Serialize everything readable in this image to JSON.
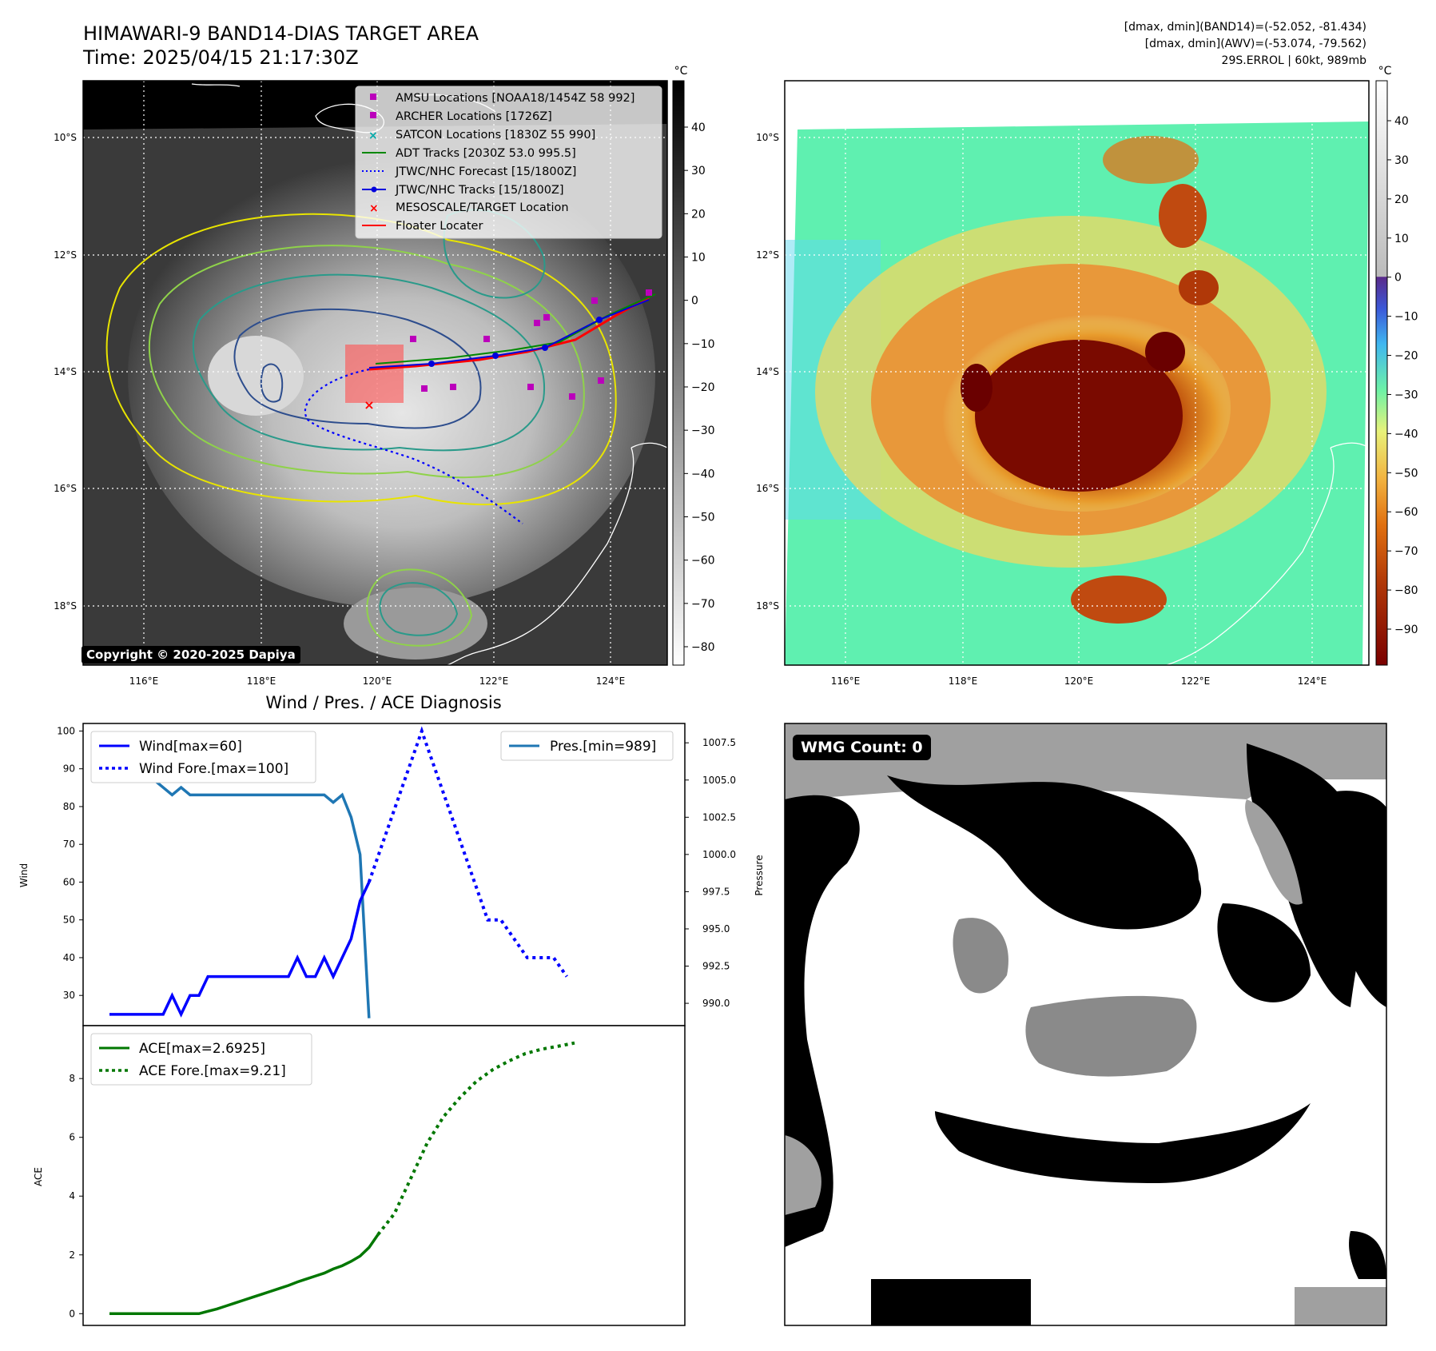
{
  "header": {
    "title_line1": "HIMAWARI-9 BAND14-DIAS TARGET AREA",
    "title_line2": "Time: 2025/04/15 21:17:30Z",
    "right_line1": "[dmax, dmin](BAND14)=(-52.052, -81.434)",
    "right_line2": "[dmax, dmin](AWV)=(-53.074, -79.562)",
    "right_line3": "29S.ERROL | 60kt, 989mb"
  },
  "copyright": "Copyright © 2020-2025 Dapiya",
  "wmg_count": "WMG Count: 0",
  "colors": {
    "wind": "#0000ff",
    "pres": "#1f77b4",
    "ace": "#007700",
    "gray_cbar_top": "#000000",
    "gray_cbar_bottom": "#ffffff"
  },
  "chart_data": [
    {
      "type": "heatmap",
      "name": "ir-grayscale-map",
      "xticks": [
        "116°E",
        "118°E",
        "120°E",
        "122°E",
        "124°E"
      ],
      "yticks": [
        "10°S",
        "12°S",
        "14°S",
        "16°S",
        "18°S"
      ],
      "colorbar_unit": "°C",
      "colorbar_ticks": [
        "40",
        "30",
        "20",
        "10",
        "0",
        "−10",
        "−20",
        "−30",
        "−40",
        "−50",
        "−60",
        "−70",
        "−80"
      ],
      "legend": [
        {
          "label": "AMSU Locations [NOAA18/1454Z 58 992]",
          "marker": "square",
          "color": "#bb00bb"
        },
        {
          "label": "ARCHER Locations [1726Z]",
          "marker": "square",
          "color": "#bb00bb"
        },
        {
          "label": "SATCON Locations [1830Z 55 990]",
          "marker": "x",
          "color": "#00aaaa"
        },
        {
          "label": "ADT Tracks [2030Z 53.0 995.5]",
          "marker": "line",
          "color": "#008800"
        },
        {
          "label": "JTWC/NHC Forecast [15/1800Z]",
          "marker": "dotted",
          "color": "#0000ff"
        },
        {
          "label": "JTWC/NHC Tracks [15/1800Z]",
          "marker": "line-dot",
          "color": "#0000dd"
        },
        {
          "label": "MESOSCALE/TARGET Location",
          "marker": "x",
          "color": "#ff0000"
        },
        {
          "label": "Floater Locater",
          "marker": "line",
          "color": "#ff0000"
        }
      ]
    },
    {
      "type": "heatmap",
      "name": "ir-enhanced-map",
      "xticks": [
        "116°E",
        "118°E",
        "120°E",
        "122°E",
        "124°E"
      ],
      "yticks": [
        "10°S",
        "12°S",
        "14°S",
        "16°S",
        "18°S"
      ],
      "colorbar_unit": "°C",
      "colorbar_ticks": [
        "40",
        "30",
        "20",
        "10",
        "0",
        "−10",
        "−20",
        "−30",
        "−40",
        "−50",
        "−60",
        "−70",
        "−80",
        "−90"
      ]
    },
    {
      "type": "line",
      "title": "Wind / Pres. / ACE Diagnosis",
      "ylabel_left": "Wind",
      "ylabel_right": "Pressure",
      "wind_ylim": [
        22,
        102
      ],
      "pres_ylim": [
        988.5,
        1008.8
      ],
      "wind_yticks": [
        "100",
        "90",
        "80",
        "70",
        "60",
        "50",
        "40",
        "30"
      ],
      "pres_yticks": [
        "1007.5",
        "1005.0",
        "1002.5",
        "1000.0",
        "997.5",
        "995.0",
        "992.5",
        "990.0"
      ],
      "series": [
        {
          "name": "Wind[max=60]",
          "style": "solid",
          "values": [
            25,
            25,
            25,
            25,
            25,
            25,
            25,
            30,
            25,
            30,
            30,
            35,
            35,
            35,
            35,
            35,
            35,
            35,
            35,
            35,
            35,
            40,
            35,
            35,
            40,
            35,
            40,
            45,
            55,
            60
          ]
        },
        {
          "name": "Wind Fore.[max=100]",
          "style": "dotted",
          "values": [
            60,
            70,
            80,
            90,
            100,
            90,
            80,
            70,
            60,
            50,
            50,
            45,
            40,
            40,
            40,
            35
          ]
        },
        {
          "name": "Pres.[min=989]",
          "style": "solid",
          "values": [
            1008,
            1007,
            1007,
            1006.5,
            1006.5,
            1005,
            1004.5,
            1004,
            1004.5,
            1004,
            1004,
            1004,
            1004,
            1004,
            1004,
            1004,
            1004,
            1004,
            1004,
            1004,
            1004,
            1004,
            1004,
            1004,
            1004,
            1003.5,
            1004,
            1002.5,
            1000,
            989
          ]
        }
      ]
    },
    {
      "type": "line",
      "ylabel": "ACE",
      "ylim": [
        -0.4,
        9.8
      ],
      "yticks": [
        "8",
        "6",
        "4",
        "2",
        "0"
      ],
      "series": [
        {
          "name": "ACE[max=2.6925]",
          "style": "solid",
          "values": [
            0,
            0,
            0,
            0,
            0,
            0,
            0,
            0,
            0,
            0,
            0,
            0.08,
            0.16,
            0.26,
            0.36,
            0.46,
            0.56,
            0.66,
            0.76,
            0.86,
            0.96,
            1.08,
            1.18,
            1.28,
            1.38,
            1.52,
            1.63,
            1.78,
            1.96,
            2.25,
            2.69
          ]
        },
        {
          "name": "ACE Fore.[max=9.21]",
          "style": "dotted",
          "values": [
            2.69,
            3.4,
            4.6,
            5.8,
            6.7,
            7.35,
            7.9,
            8.3,
            8.6,
            8.85,
            9.0,
            9.1,
            9.21
          ]
        }
      ]
    }
  ]
}
